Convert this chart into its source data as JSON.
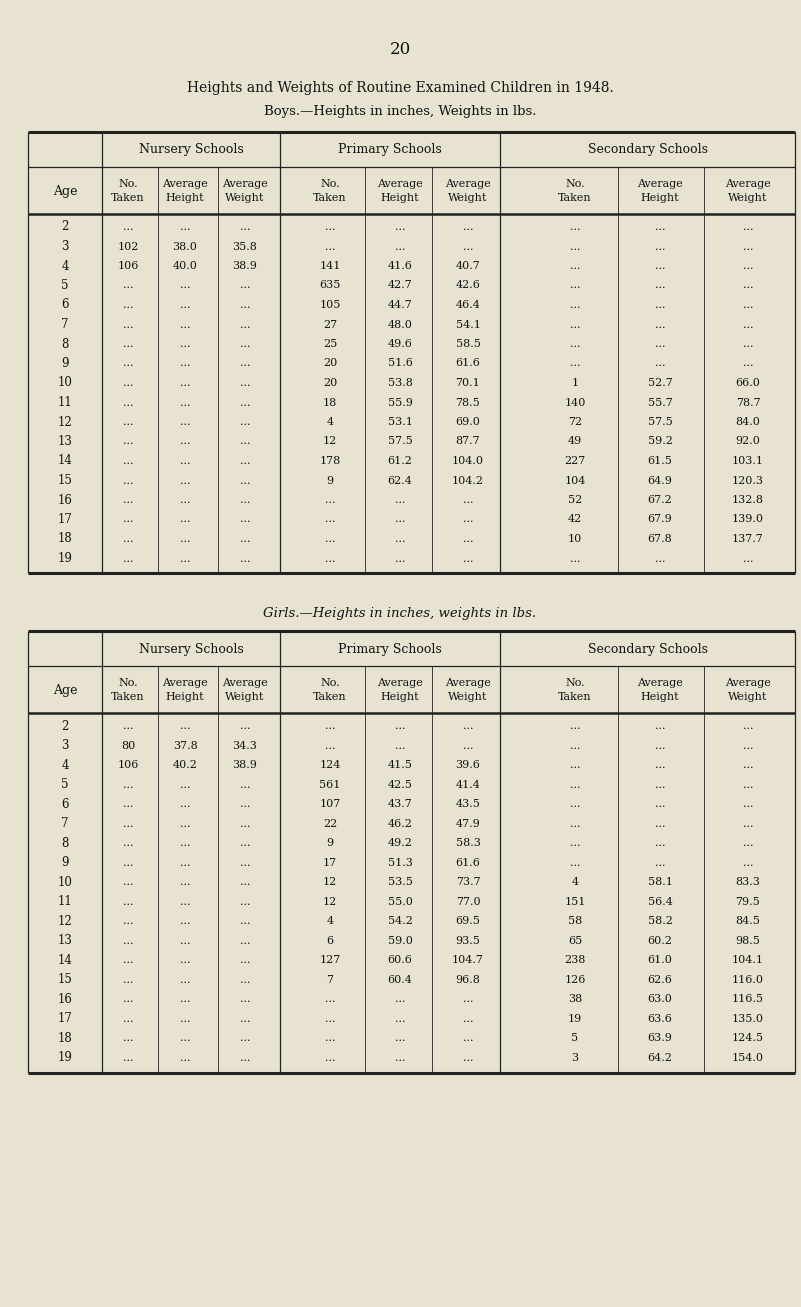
{
  "page_number": "20",
  "main_title": "Heights and Weights of Routine Examined Children in 1948.",
  "boys_subtitle": "Boys.—Heights in inches, Weights in lbs.",
  "girls_subtitle": "Girls.—Heights in inches, weights in lbs.",
  "age_label": "Age",
  "boys_data": {
    "ages": [
      "2",
      "3",
      "4",
      "5",
      "6",
      "7",
      "8",
      "9",
      "10",
      "11",
      "12",
      "13",
      "14",
      "15",
      "16",
      "17",
      "18",
      "19"
    ],
    "nursery": [
      [
        "...",
        "...",
        "..."
      ],
      [
        "102",
        "38.0",
        "35.8"
      ],
      [
        "106",
        "40.0",
        "38.9"
      ],
      [
        "...",
        "...",
        "..."
      ],
      [
        "...",
        "...",
        "..."
      ],
      [
        "...",
        "...",
        "..."
      ],
      [
        "...",
        "...",
        "..."
      ],
      [
        "...",
        "...",
        "..."
      ],
      [
        "...",
        "...",
        "..."
      ],
      [
        "...",
        "...",
        "..."
      ],
      [
        "...",
        "...",
        "..."
      ],
      [
        "...",
        "...",
        "..."
      ],
      [
        "...",
        "...",
        "..."
      ],
      [
        "...",
        "...",
        "..."
      ],
      [
        "...",
        "...",
        "..."
      ],
      [
        "...",
        "...",
        "..."
      ],
      [
        "...",
        "...",
        "..."
      ],
      [
        "...",
        "...",
        "..."
      ]
    ],
    "primary": [
      [
        "...",
        "...",
        "..."
      ],
      [
        "...",
        "...",
        "..."
      ],
      [
        "141",
        "41.6",
        "40.7"
      ],
      [
        "635",
        "42.7",
        "42.6"
      ],
      [
        "105",
        "44.7",
        "46.4"
      ],
      [
        "27",
        "48.0",
        "54.1"
      ],
      [
        "25",
        "49.6",
        "58.5"
      ],
      [
        "20",
        "51.6",
        "61.6"
      ],
      [
        "20",
        "53.8",
        "70.1"
      ],
      [
        "18",
        "55.9",
        "78.5"
      ],
      [
        "4",
        "53.1",
        "69.0"
      ],
      [
        "12",
        "57.5",
        "87.7"
      ],
      [
        "178",
        "61.2",
        "104.0"
      ],
      [
        "9",
        "62.4",
        "104.2"
      ],
      [
        "...",
        "...",
        "..."
      ],
      [
        "...",
        "...",
        "..."
      ],
      [
        "...",
        "...",
        "..."
      ],
      [
        "...",
        "...",
        "..."
      ]
    ],
    "secondary": [
      [
        "...",
        "...",
        "..."
      ],
      [
        "...",
        "...",
        "..."
      ],
      [
        "...",
        "...",
        "..."
      ],
      [
        "...",
        "...",
        "..."
      ],
      [
        "...",
        "...",
        "..."
      ],
      [
        "...",
        "...",
        "..."
      ],
      [
        "...",
        "...",
        "..."
      ],
      [
        "...",
        "...",
        "..."
      ],
      [
        "1",
        "52.7",
        "66.0"
      ],
      [
        "140",
        "55.7",
        "78.7"
      ],
      [
        "72",
        "57.5",
        "84.0"
      ],
      [
        "49",
        "59.2",
        "92.0"
      ],
      [
        "227",
        "61.5",
        "103.1"
      ],
      [
        "104",
        "64.9",
        "120.3"
      ],
      [
        "52",
        "67.2",
        "132.8"
      ],
      [
        "42",
        "67.9",
        "139.0"
      ],
      [
        "10",
        "67.8",
        "137.7"
      ],
      [
        "...",
        "...",
        "..."
      ]
    ]
  },
  "girls_data": {
    "ages": [
      "2",
      "3",
      "4",
      "5",
      "6",
      "7",
      "8",
      "9",
      "10",
      "11",
      "12",
      "13",
      "14",
      "15",
      "16",
      "17",
      "18",
      "19"
    ],
    "nursery": [
      [
        "...",
        "...",
        "..."
      ],
      [
        "80",
        "37.8",
        "34.3"
      ],
      [
        "106",
        "40.2",
        "38.9"
      ],
      [
        "...",
        "...",
        "..."
      ],
      [
        "...",
        "...",
        "..."
      ],
      [
        "...",
        "...",
        "..."
      ],
      [
        "...",
        "...",
        "..."
      ],
      [
        "...",
        "...",
        "..."
      ],
      [
        "...",
        "...",
        "..."
      ],
      [
        "...",
        "...",
        "..."
      ],
      [
        "...",
        "...",
        "..."
      ],
      [
        "...",
        "...",
        "..."
      ],
      [
        "...",
        "...",
        "..."
      ],
      [
        "...",
        "...",
        "..."
      ],
      [
        "...",
        "...",
        "..."
      ],
      [
        "...",
        "...",
        "..."
      ],
      [
        "...",
        "...",
        "..."
      ],
      [
        "...",
        "...",
        "..."
      ]
    ],
    "primary": [
      [
        "...",
        "...",
        "..."
      ],
      [
        "...",
        "...",
        "..."
      ],
      [
        "124",
        "41.5",
        "39.6"
      ],
      [
        "561",
        "42.5",
        "41.4"
      ],
      [
        "107",
        "43.7",
        "43.5"
      ],
      [
        "22",
        "46.2",
        "47.9"
      ],
      [
        "9",
        "49.2",
        "58.3"
      ],
      [
        "17",
        "51.3",
        "61.6"
      ],
      [
        "12",
        "53.5",
        "73.7"
      ],
      [
        "12",
        "55.0",
        "77.0"
      ],
      [
        "4",
        "54.2",
        "69.5"
      ],
      [
        "6",
        "59.0",
        "93.5"
      ],
      [
        "127",
        "60.6",
        "104.7"
      ],
      [
        "7",
        "60.4",
        "96.8"
      ],
      [
        "...",
        "...",
        "..."
      ],
      [
        "...",
        "...",
        "..."
      ],
      [
        "...",
        "...",
        "..."
      ],
      [
        "...",
        "...",
        "..."
      ]
    ],
    "secondary": [
      [
        "...",
        "...",
        "..."
      ],
      [
        "...",
        "...",
        "..."
      ],
      [
        "...",
        "...",
        "..."
      ],
      [
        "...",
        "...",
        "..."
      ],
      [
        "...",
        "...",
        "..."
      ],
      [
        "...",
        "...",
        "..."
      ],
      [
        "...",
        "...",
        "..."
      ],
      [
        "...",
        "...",
        "..."
      ],
      [
        "4",
        "58.1",
        "83.3"
      ],
      [
        "151",
        "56.4",
        "79.5"
      ],
      [
        "58",
        "58.2",
        "84.5"
      ],
      [
        "65",
        "60.2",
        "98.5"
      ],
      [
        "238",
        "61.0",
        "104.1"
      ],
      [
        "126",
        "62.6",
        "116.0"
      ],
      [
        "38",
        "63.0",
        "116.5"
      ],
      [
        "19",
        "63.6",
        "135.0"
      ],
      [
        "5",
        "63.9",
        "124.5"
      ],
      [
        "3",
        "64.2",
        "154.0"
      ]
    ]
  },
  "bg_color": "#e8e3d0",
  "text_color": "#111111",
  "line_color": "#222222"
}
